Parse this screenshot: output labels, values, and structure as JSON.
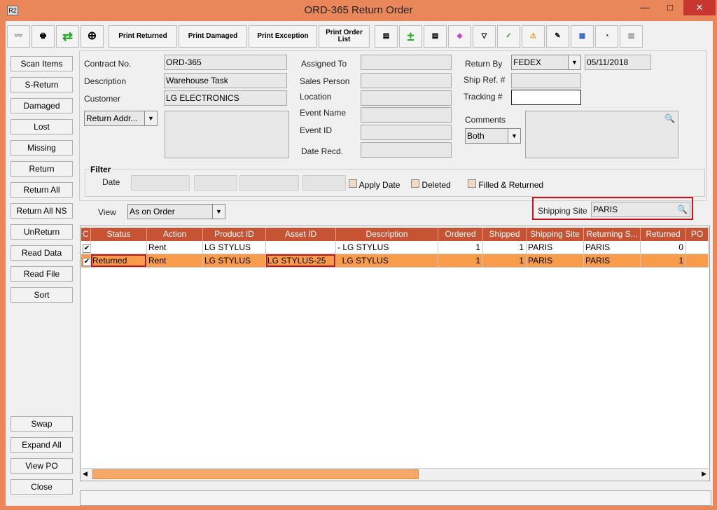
{
  "window": {
    "title": "ORD-365 Return Order",
    "app_icon": "R2"
  },
  "toolbar": {
    "print_returned": "Print Returned",
    "print_damaged": "Print Damaged",
    "print_exception": "Print Exception",
    "print_order_list": "Print Order List"
  },
  "sidebar": [
    "Scan Items",
    "S-Return",
    "Damaged",
    "Lost",
    "Missing",
    "Return",
    "Return All",
    "Return All NS",
    "UnReturn",
    "Read Data",
    "Read File",
    "Sort"
  ],
  "sidebar_bottom": [
    "Swap",
    "Expand All",
    "View PO",
    "Close"
  ],
  "form": {
    "contract_label": "Contract No.",
    "contract": "ORD-365",
    "description_label": "Description",
    "description": "Warehouse Task",
    "customer_label": "Customer",
    "customer": "LG ELECTRONICS",
    "return_addr": "Return Addr...",
    "assigned_label": "Assigned To",
    "sales_label": "Sales Person",
    "location_label": "Location",
    "event_name_label": "Event Name",
    "event_id_label": "Event ID",
    "date_recd_label": "Date Recd.",
    "return_by_label": "Return By",
    "return_by": "FEDEX",
    "return_date": "05/11/2018",
    "ship_ref_label": "Ship Ref. #",
    "tracking_label": "Tracking #",
    "comments_label": "Comments",
    "comments_filter": "Both"
  },
  "filter": {
    "title": "Filter",
    "date_label": "Date",
    "apply_date": "Apply Date",
    "deleted": "Deleted",
    "filled_returned": "Filled & Returned"
  },
  "view": {
    "label": "View",
    "value": "As on Order",
    "shipping_site_label": "Shipping Site",
    "shipping_site": "PARIS"
  },
  "grid": {
    "columns": [
      "C",
      "Status",
      "Action",
      "Product ID",
      "Asset ID",
      "Description",
      "Ordered",
      "Shipped",
      "Shipping Site",
      "Returning S...",
      "Returned",
      "PO"
    ],
    "rows": [
      {
        "checked": true,
        "status": "",
        "action": "Rent",
        "product": "LG STYLUS",
        "asset": "",
        "description": "- LG STYLUS",
        "ordered": "1",
        "shipped": "1",
        "ship_site": "PARIS",
        "return_site": "PARIS",
        "returned": "0",
        "po": ""
      },
      {
        "checked": true,
        "status": "Returned",
        "action": "Rent",
        "product": "LG STYLUS",
        "asset": "LG STYLUS-25",
        "description": "  LG STYLUS",
        "ordered": "1",
        "shipped": "1",
        "ship_site": "PARIS",
        "return_site": "PARIS",
        "returned": "1",
        "po": ""
      }
    ]
  },
  "colors": {
    "accent": "#e9875a",
    "header": "#c65333",
    "selected_row": "#f89c4c",
    "highlight_border": "#c0161c"
  }
}
